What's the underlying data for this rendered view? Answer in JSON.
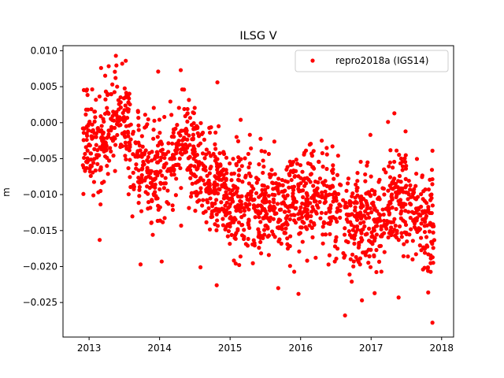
{
  "chart_data": {
    "type": "scatter",
    "title": "ILSG V",
    "xlabel": "",
    "ylabel": "m",
    "xlim": [
      2012.63,
      2018.17
    ],
    "ylim": [
      -0.0298,
      0.0107
    ],
    "x_ticks": [
      2013,
      2014,
      2015,
      2016,
      2017,
      2018
    ],
    "x_tick_labels": [
      "2013",
      "2014",
      "2015",
      "2016",
      "2017",
      "2018"
    ],
    "y_ticks": [
      0.01,
      0.005,
      0.0,
      -0.005,
      -0.01,
      -0.015,
      -0.02,
      -0.025
    ],
    "y_tick_labels": [
      "0.010",
      "0.005",
      "0.000",
      "−0.005",
      "−0.010",
      "−0.015",
      "−0.020",
      "−0.025"
    ],
    "grid": false,
    "legend_position": "upper-right",
    "series": [
      {
        "name": "repro2018a (IGS14)",
        "color": "#ff0000",
        "marker": "circle",
        "trend_points": [
          {
            "x": 2012.9,
            "y": -0.003
          },
          {
            "x": 2013.2,
            "y": -0.002
          },
          {
            "x": 2013.4,
            "y": 0.002
          },
          {
            "x": 2013.6,
            "y": -0.004
          },
          {
            "x": 2013.9,
            "y": -0.008
          },
          {
            "x": 2014.1,
            "y": -0.006
          },
          {
            "x": 2014.35,
            "y": -0.001
          },
          {
            "x": 2014.6,
            "y": -0.007
          },
          {
            "x": 2015.0,
            "y": -0.011
          },
          {
            "x": 2015.5,
            "y": -0.012
          },
          {
            "x": 2016.0,
            "y": -0.011
          },
          {
            "x": 2016.3,
            "y": -0.01
          },
          {
            "x": 2016.7,
            "y": -0.014
          },
          {
            "x": 2017.0,
            "y": -0.014
          },
          {
            "x": 2017.4,
            "y": -0.01
          },
          {
            "x": 2017.7,
            "y": -0.013
          },
          {
            "x": 2017.9,
            "y": -0.015
          }
        ],
        "scatter_sd": 0.0035,
        "n_points": 1700,
        "points": [
          {
            "x": 2013.38,
            "y": 0.0093
          },
          {
            "x": 2013.47,
            "y": 0.0082
          },
          {
            "x": 2013.52,
            "y": 0.0086
          },
          {
            "x": 2014.3,
            "y": 0.0073
          },
          {
            "x": 2013.98,
            "y": 0.0071
          },
          {
            "x": 2014.82,
            "y": 0.0056
          },
          {
            "x": 2012.97,
            "y": 0.0046
          },
          {
            "x": 2013.17,
            "y": 0.0076
          },
          {
            "x": 2013.15,
            "y": -0.0163
          },
          {
            "x": 2013.73,
            "y": -0.0197
          },
          {
            "x": 2014.03,
            "y": -0.0193
          },
          {
            "x": 2014.58,
            "y": -0.0201
          },
          {
            "x": 2014.81,
            "y": -0.0226
          },
          {
            "x": 2015.97,
            "y": -0.0238
          },
          {
            "x": 2016.63,
            "y": -0.0268
          },
          {
            "x": 2016.87,
            "y": -0.0247
          },
          {
            "x": 2017.05,
            "y": -0.0237
          },
          {
            "x": 2017.39,
            "y": -0.0243
          },
          {
            "x": 2017.81,
            "y": -0.0236
          },
          {
            "x": 2017.87,
            "y": -0.0278
          },
          {
            "x": 2017.5,
            "y": -0.0153
          },
          {
            "x": 2017.33,
            "y": 0.0013
          },
          {
            "x": 2017.24,
            "y": 0.0001
          },
          {
            "x": 2016.99,
            "y": -0.0017
          },
          {
            "x": 2017.87,
            "y": -0.0039
          },
          {
            "x": 2015.15,
            "y": 0.0004
          },
          {
            "x": 2016.3,
            "y": -0.0025
          }
        ]
      }
    ]
  }
}
